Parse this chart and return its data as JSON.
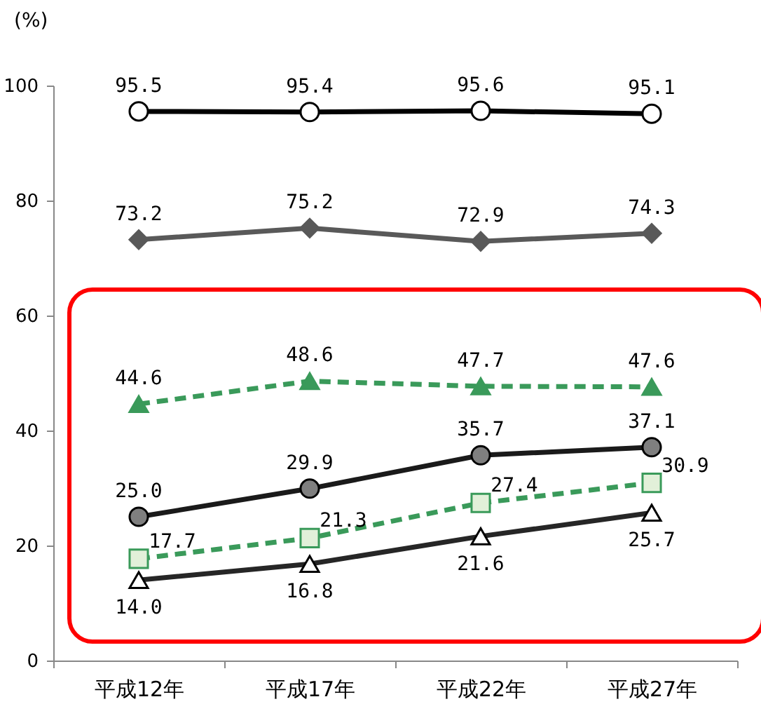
{
  "chart_data": {
    "type": "line",
    "ylabel": "(%)",
    "categories": [
      "平成12年",
      "平成17年",
      "平成22年",
      "平成27年"
    ],
    "series": [
      {
        "color": "#000000",
        "marker": "circle",
        "line_style": "solid",
        "values": [
          95.5,
          95.4,
          95.6,
          95.1
        ],
        "value_labels": [
          "95.5",
          "95.4",
          "95.6",
          "95.1"
        ]
      },
      {
        "color": "#595959",
        "marker": "diamond",
        "line_style": "solid",
        "values": [
          73.2,
          75.2,
          72.9,
          74.3
        ],
        "value_labels": [
          "73.2",
          "75.2",
          "72.9",
          "74.3"
        ]
      },
      {
        "color": "#3a9a5a",
        "marker": "triangle",
        "line_style": "dashed",
        "values": [
          44.6,
          48.6,
          47.7,
          47.6
        ],
        "value_labels": [
          "44.6",
          "48.6",
          "47.7",
          "47.6"
        ]
      },
      {
        "color": "#1a1a1a",
        "marker": "circle",
        "line_style": "solid",
        "values": [
          25.0,
          29.9,
          35.7,
          37.1
        ],
        "value_labels": [
          "25.0",
          "29.9",
          "35.7",
          "37.1"
        ]
      },
      {
        "color": "#3a9a5a",
        "marker": "square",
        "line_style": "dashed",
        "values": [
          17.7,
          21.3,
          27.4,
          30.9
        ],
        "value_labels": [
          "17.7",
          "21.3",
          "27.4",
          "30.9"
        ]
      },
      {
        "color": "#262626",
        "marker": "triangle",
        "line_style": "solid",
        "values": [
          14.0,
          16.8,
          21.6,
          25.7
        ],
        "value_labels": [
          "14.0",
          "16.8",
          "21.6",
          "25.7"
        ]
      }
    ],
    "ylim": [
      0,
      100
    ],
    "yticks": [
      0,
      20,
      40,
      60,
      80,
      100
    ],
    "grid": false
  }
}
